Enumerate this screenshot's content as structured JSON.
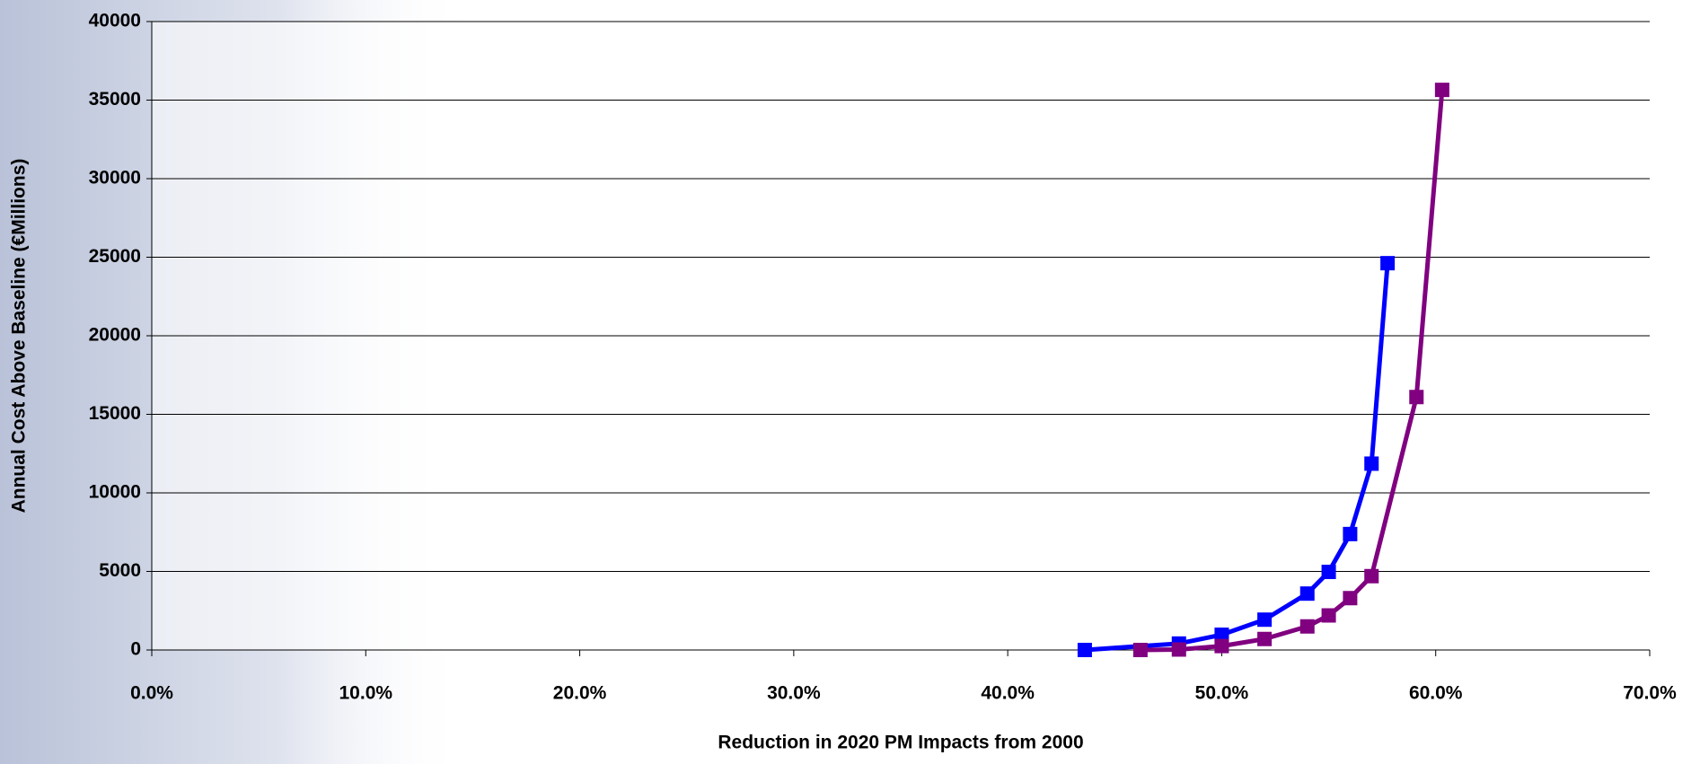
{
  "chart_data": {
    "type": "line",
    "x_label": "Reduction in 2020 PM Impacts from 2000",
    "y_label": "Annual Cost Above Baseline (€Millions)",
    "xlim": [
      0,
      70
    ],
    "xticks": [
      {
        "value": 0,
        "label": "0.0%"
      },
      {
        "value": 10,
        "label": "10.0%"
      },
      {
        "value": 20,
        "label": "20.0%"
      },
      {
        "value": 30,
        "label": "30.0%"
      },
      {
        "value": 40,
        "label": "40.0%"
      },
      {
        "value": 50,
        "label": "50.0%"
      },
      {
        "value": 60,
        "label": "60.0%"
      },
      {
        "value": 70,
        "label": "70.0%"
      }
    ],
    "ylim": [
      0,
      40000
    ],
    "yticks": [
      0,
      5000,
      10000,
      15000,
      20000,
      25000,
      30000,
      35000,
      40000
    ],
    "grid": true,
    "series": [
      {
        "color": "#0000ff",
        "x": [
          43.6,
          48.0,
          50.0,
          52.0,
          54.0,
          55.0,
          56.0,
          57.0,
          57.75
        ],
        "values": [
          0,
          410,
          970,
          1930,
          3590,
          4970,
          7380,
          11860,
          24620
        ]
      },
      {
        "color": "#800080",
        "x": [
          46.2,
          48.0,
          50.0,
          52.0,
          54.0,
          55.0,
          56.0,
          57.0,
          59.1,
          60.3
        ],
        "values": [
          0,
          30,
          250,
          700,
          1500,
          2200,
          3300,
          4700,
          16100,
          35650
        ]
      }
    ]
  }
}
